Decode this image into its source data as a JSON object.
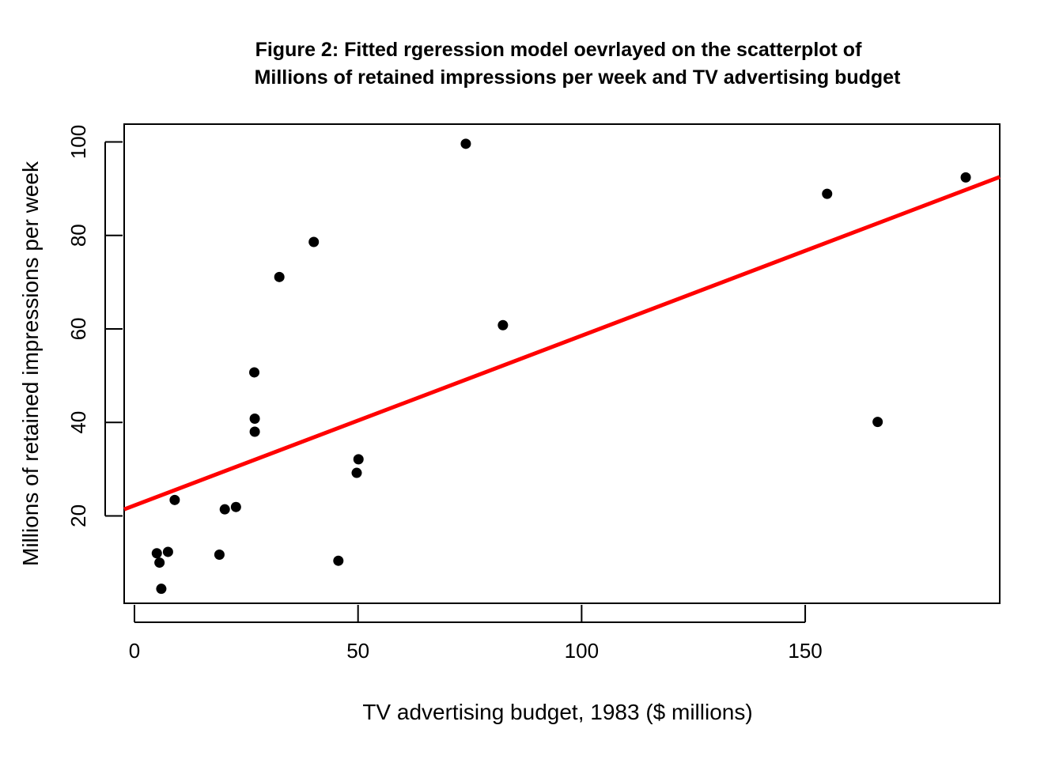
{
  "chart_data": {
    "type": "scatter",
    "title_lines": [
      "Figure 2: Fitted rgeression model oevrlayed on the scatterplot of",
      "Millions of retained impressions per week and TV advertising budget"
    ],
    "xlabel": "TV advertising budget, 1983 ($ millions)",
    "ylabel": "Millions of retained impressions per week",
    "xlim": [
      -2.3,
      193.5
    ],
    "ylim": [
      1.3,
      103.8
    ],
    "x_ticks": [
      0,
      50,
      100,
      150
    ],
    "x_tick_labels": [
      "0",
      "50",
      "100",
      "150"
    ],
    "y_ticks": [
      20,
      40,
      60,
      80,
      100
    ],
    "y_tick_labels": [
      "20",
      "40",
      "60",
      "80",
      "100"
    ],
    "grid": false,
    "point_color": "#000000",
    "points": [
      {
        "x": 5.0,
        "y": 12.0
      },
      {
        "x": 5.6,
        "y": 10.0
      },
      {
        "x": 6.0,
        "y": 4.4
      },
      {
        "x": 7.5,
        "y": 12.3
      },
      {
        "x": 9.0,
        "y": 23.4
      },
      {
        "x": 19.0,
        "y": 11.7
      },
      {
        "x": 20.2,
        "y": 21.4
      },
      {
        "x": 22.7,
        "y": 21.9
      },
      {
        "x": 26.8,
        "y": 50.7
      },
      {
        "x": 26.9,
        "y": 40.8
      },
      {
        "x": 26.9,
        "y": 38.0
      },
      {
        "x": 32.4,
        "y": 71.1
      },
      {
        "x": 40.1,
        "y": 78.6
      },
      {
        "x": 45.6,
        "y": 10.4
      },
      {
        "x": 49.7,
        "y": 29.2
      },
      {
        "x": 50.1,
        "y": 32.1
      },
      {
        "x": 74.1,
        "y": 99.6
      },
      {
        "x": 82.4,
        "y": 60.8
      },
      {
        "x": 154.9,
        "y": 88.9
      },
      {
        "x": 166.2,
        "y": 40.1
      },
      {
        "x": 185.9,
        "y": 92.4
      }
    ],
    "fit_line": {
      "color": "#ff0000",
      "x": [
        -2.3,
        193.5
      ],
      "y": [
        21.4,
        92.5
      ]
    }
  }
}
